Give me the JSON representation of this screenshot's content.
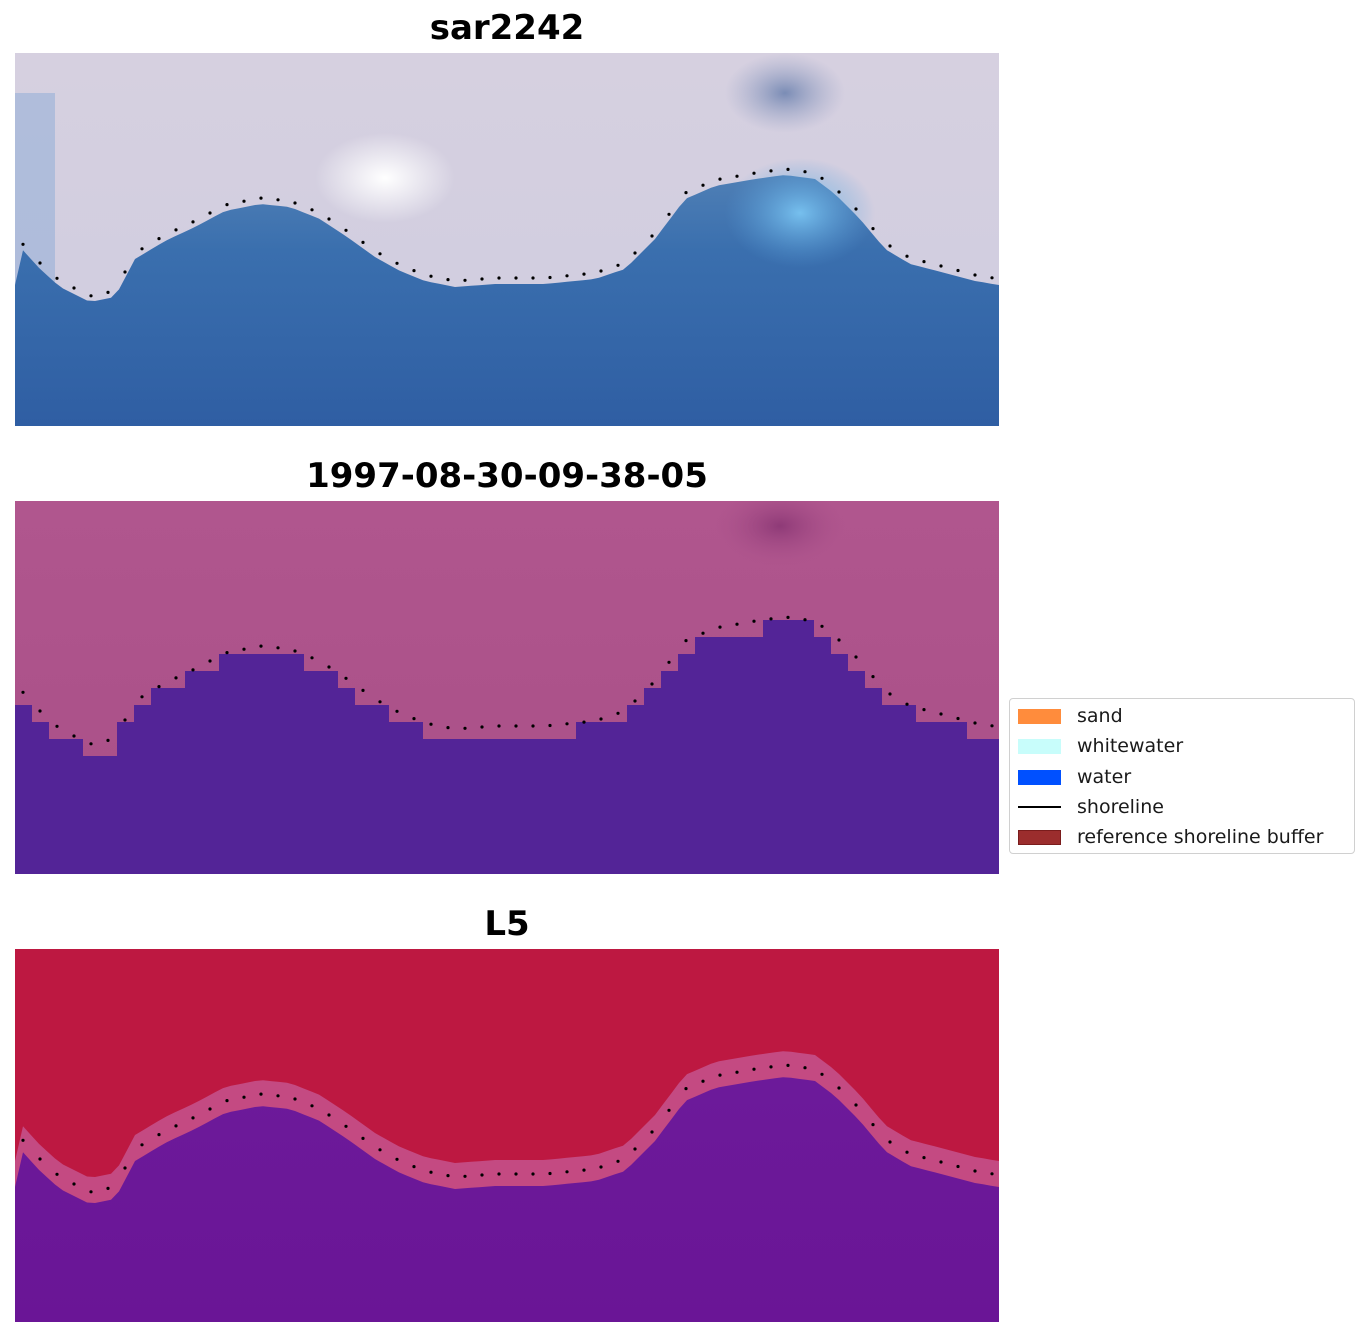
{
  "panels": [
    {
      "title": "sar2242",
      "style": "rgb"
    },
    {
      "title": "1997-08-30-09-38-05",
      "style": "class"
    },
    {
      "title": "L5",
      "style": "prob"
    }
  ],
  "legend": {
    "items": [
      {
        "label": "sand",
        "kind": "patch",
        "color": "#ff8c3c"
      },
      {
        "label": "whitewater",
        "kind": "patch",
        "color": "#c8fdfb"
      },
      {
        "label": "water",
        "kind": "patch",
        "color": "#0050ff"
      },
      {
        "label": "shoreline",
        "kind": "line",
        "color": "#000000"
      },
      {
        "label": "reference shoreline buffer",
        "kind": "patch",
        "color": "#9b2d2d"
      }
    ]
  }
}
